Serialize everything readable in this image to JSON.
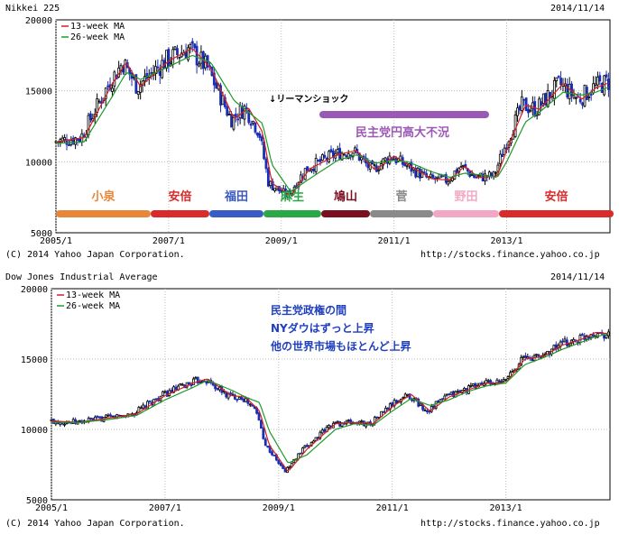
{
  "charts": [
    {
      "title": "Nikkei 225",
      "date": "2014/11/14",
      "copyright": "(C) 2014 Yahoo Japan Corporation.",
      "source_url": "http://stocks.finance.yahoo.co.jp",
      "legend": [
        "13-week MA",
        "26-week MA"
      ],
      "colors": {
        "ma13": "#d42020",
        "ma26": "#1f9a2a",
        "candle_up": "#000000",
        "candle_down": "#1a2fb5"
      },
      "annotation_arrow": "↓リーマンショック",
      "dpj_label": "民主党円高大不況",
      "dpj_bar_color": "#9b59b6"
    },
    {
      "title": "Dow Jones Industrial Average",
      "date": "2014/11/14",
      "copyright": "(C) 2014 Yahoo Japan Corporation.",
      "source_url": "http://stocks.finance.yahoo.co.jp",
      "legend": [
        "13-week MA",
        "26-week MA"
      ],
      "annotation_lines": [
        "民主党政権の間",
        "NYダウはずっと上昇",
        "他の世界市場もほとんど上昇"
      ],
      "annotation_color": "#1f3fbf"
    }
  ],
  "eras": [
    {
      "label": "小泉",
      "color": "#e8873a"
    },
    {
      "label": "安倍",
      "color": "#d92b2b"
    },
    {
      "label": "福田",
      "color": "#3b5bc4"
    },
    {
      "label": "麻生",
      "color": "#2aa845"
    },
    {
      "label": "鳩山",
      "color": "#7a0f1f"
    },
    {
      "label": "菅",
      "color": "#8a8a8a"
    },
    {
      "label": "野田",
      "color": "#f2a8c4"
    },
    {
      "label": "安倍",
      "color": "#d92b2b"
    }
  ],
  "chart_data": [
    {
      "type": "line",
      "title": "Nikkei 225",
      "x_ticks": [
        "2005/1",
        "2007/1",
        "2009/1",
        "2011/1",
        "2013/1"
      ],
      "y_ticks": [
        "5000",
        "10000",
        "15000",
        "20000"
      ],
      "ylim": [
        5000,
        20000
      ],
      "xlim": [
        "2005/1",
        "2014/11"
      ],
      "series": [
        {
          "name": "13-week MA",
          "x": [
            "2005/1",
            "2005/7",
            "2006/1",
            "2006/4",
            "2006/7",
            "2007/1",
            "2007/6",
            "2007/10",
            "2008/3",
            "2008/6",
            "2008/9",
            "2008/11",
            "2009/3",
            "2009/7",
            "2010/1",
            "2010/5",
            "2010/9",
            "2011/1",
            "2011/4",
            "2011/9",
            "2012/1",
            "2012/4",
            "2012/7",
            "2012/11",
            "2013/1",
            "2013/5",
            "2013/8",
            "2014/1",
            "2014/5",
            "2014/8",
            "2014/11"
          ],
          "values": [
            11400,
            11700,
            15500,
            17000,
            15300,
            17100,
            18000,
            16600,
            13000,
            13800,
            12100,
            8500,
            7600,
            9500,
            10500,
            10800,
            9400,
            10400,
            9800,
            8800,
            8700,
            9700,
            8900,
            9000,
            10800,
            14000,
            13700,
            15500,
            14400,
            15200,
            15600
          ]
        },
        {
          "name": "26-week MA",
          "x": [
            "2005/1",
            "2005/7",
            "2006/1",
            "2006/4",
            "2006/7",
            "2007/1",
            "2007/6",
            "2007/10",
            "2008/3",
            "2008/6",
            "2008/9",
            "2008/11",
            "2009/3",
            "2009/7",
            "2010/1",
            "2010/5",
            "2010/9",
            "2011/1",
            "2011/4",
            "2011/9",
            "2012/1",
            "2012/4",
            "2012/7",
            "2012/11",
            "2013/1",
            "2013/5",
            "2013/8",
            "2014/1",
            "2014/5",
            "2014/8",
            "2014/11"
          ],
          "values": [
            11300,
            11400,
            14600,
            16300,
            15800,
            16700,
            17500,
            17000,
            14300,
            13500,
            12700,
            9800,
            7900,
            8800,
            10100,
            10500,
            9900,
            10100,
            10000,
            9300,
            8900,
            9200,
            9100,
            8900,
            10000,
            12800,
            13500,
            14900,
            14700,
            14900,
            15300
          ]
        }
      ]
    },
    {
      "type": "line",
      "title": "Dow Jones Industrial Average",
      "x_ticks": [
        "2005/1",
        "2007/1",
        "2009/1",
        "2011/1",
        "2013/1"
      ],
      "y_ticks": [
        "5000",
        "10000",
        "15000",
        "20000"
      ],
      "ylim": [
        5000,
        20000
      ],
      "xlim": [
        "2005/1",
        "2014/11"
      ],
      "series": [
        {
          "name": "13-week MA",
          "x": [
            "2005/1",
            "2005/7",
            "2006/1",
            "2006/7",
            "2007/1",
            "2007/7",
            "2007/10",
            "2008/3",
            "2008/6",
            "2008/9",
            "2008/11",
            "2009/3",
            "2009/7",
            "2010/1",
            "2010/5",
            "2010/9",
            "2011/1",
            "2011/5",
            "2011/9",
            "2012/1",
            "2012/5",
            "2012/9",
            "2013/1",
            "2013/5",
            "2013/9",
            "2014/1",
            "2014/5",
            "2014/8",
            "2014/11"
          ],
          "values": [
            10600,
            10500,
            10800,
            11100,
            12400,
            13300,
            13600,
            12400,
            12300,
            11300,
            8900,
            7000,
            8600,
            10400,
            10500,
            10400,
            11600,
            12500,
            11300,
            12300,
            12800,
            13300,
            13300,
            15000,
            15200,
            16000,
            16400,
            16900,
            16800
          ]
        },
        {
          "name": "26-week MA",
          "x": [
            "2005/1",
            "2005/7",
            "2006/1",
            "2006/7",
            "2007/1",
            "2007/7",
            "2007/10",
            "2008/3",
            "2008/6",
            "2008/9",
            "2008/11",
            "2009/3",
            "2009/7",
            "2010/1",
            "2010/5",
            "2010/9",
            "2011/1",
            "2011/5",
            "2011/9",
            "2012/1",
            "2012/5",
            "2012/9",
            "2013/1",
            "2013/5",
            "2013/9",
            "2014/1",
            "2014/5",
            "2014/8",
            "2014/11"
          ],
          "values": [
            10500,
            10500,
            10700,
            11000,
            12100,
            13000,
            13500,
            12800,
            12300,
            11900,
            9900,
            7600,
            8200,
            10000,
            10400,
            10300,
            11300,
            12200,
            11700,
            12100,
            12700,
            13100,
            13300,
            14600,
            15100,
            15700,
            16200,
            16600,
            16800
          ]
        }
      ]
    }
  ]
}
